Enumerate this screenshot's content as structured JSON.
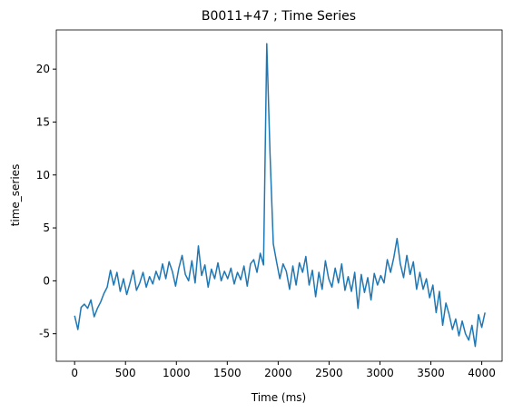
{
  "chart_data": {
    "type": "line",
    "title": "B0011+47 ; Time Series",
    "x_label": "Time (ms)",
    "y_label": "time_series",
    "x": [
      0,
      32,
      64,
      96,
      128,
      160,
      192,
      224,
      256,
      288,
      320,
      352,
      384,
      416,
      448,
      480,
      512,
      544,
      576,
      608,
      640,
      672,
      704,
      736,
      768,
      800,
      832,
      864,
      896,
      928,
      960,
      992,
      1024,
      1056,
      1088,
      1120,
      1152,
      1184,
      1216,
      1248,
      1280,
      1312,
      1344,
      1376,
      1408,
      1440,
      1472,
      1504,
      1536,
      1568,
      1600,
      1632,
      1664,
      1696,
      1728,
      1760,
      1792,
      1824,
      1856,
      1888,
      1920,
      1952,
      1984,
      2016,
      2048,
      2080,
      2112,
      2144,
      2176,
      2208,
      2240,
      2272,
      2304,
      2336,
      2368,
      2400,
      2432,
      2464,
      2496,
      2528,
      2560,
      2592,
      2624,
      2656,
      2688,
      2720,
      2752,
      2784,
      2816,
      2848,
      2880,
      2912,
      2944,
      2976,
      3008,
      3040,
      3072,
      3104,
      3136,
      3168,
      3200,
      3232,
      3264,
      3296,
      3328,
      3360,
      3392,
      3424,
      3456,
      3488,
      3520,
      3552,
      3584,
      3616,
      3648,
      3680,
      3712,
      3744,
      3776,
      3808,
      3840,
      3872,
      3904,
      3936,
      3968,
      4000,
      4032
    ],
    "series": [
      {
        "name": "time_series",
        "color": "#1f77b4",
        "values": [
          -3.3,
          -4.6,
          -2.5,
          -2.2,
          -2.6,
          -1.8,
          -3.4,
          -2.6,
          -2.0,
          -1.2,
          -0.6,
          1.0,
          -0.4,
          0.8,
          -1.0,
          0.2,
          -1.3,
          -0.2,
          1.0,
          -0.9,
          -0.2,
          0.8,
          -0.6,
          0.4,
          -0.3,
          0.9,
          0.1,
          1.6,
          0.2,
          1.8,
          0.9,
          -0.5,
          1.2,
          2.4,
          0.6,
          0.0,
          1.9,
          -0.2,
          3.3,
          0.5,
          1.5,
          -0.6,
          1.1,
          0.2,
          1.7,
          0.0,
          0.9,
          0.2,
          1.2,
          -0.3,
          0.8,
          0.1,
          1.4,
          -0.5,
          1.6,
          2.0,
          0.8,
          2.6,
          1.5,
          22.4,
          12.0,
          3.5,
          1.8,
          0.2,
          1.6,
          0.9,
          -0.8,
          1.4,
          -0.4,
          1.7,
          0.8,
          2.3,
          -0.4,
          1.0,
          -1.5,
          0.8,
          -0.8,
          1.9,
          0.2,
          -0.6,
          1.2,
          -0.2,
          1.6,
          -0.9,
          0.4,
          -1.0,
          0.8,
          -2.6,
          0.6,
          -1.1,
          0.3,
          -1.8,
          0.7,
          -0.4,
          0.5,
          -0.2,
          2.0,
          0.8,
          2.2,
          4.0,
          1.6,
          0.3,
          2.4,
          0.6,
          1.8,
          -0.8,
          0.8,
          -0.8,
          0.2,
          -1.6,
          -0.4,
          -3.0,
          -1.0,
          -4.2,
          -2.1,
          -3.2,
          -4.6,
          -3.6,
          -5.2,
          -3.8,
          -5.0,
          -5.6,
          -4.2,
          -6.2,
          -3.2,
          -4.4,
          -3.0
        ]
      }
    ],
    "xlim": [
      -180,
      4200
    ],
    "ylim": [
      -7.6,
      23.7
    ],
    "xticks": [
      0,
      500,
      1000,
      1500,
      2000,
      2500,
      3000,
      3500,
      4000
    ],
    "yticks": [
      -5,
      0,
      5,
      10,
      15,
      20
    ],
    "grid": false
  }
}
